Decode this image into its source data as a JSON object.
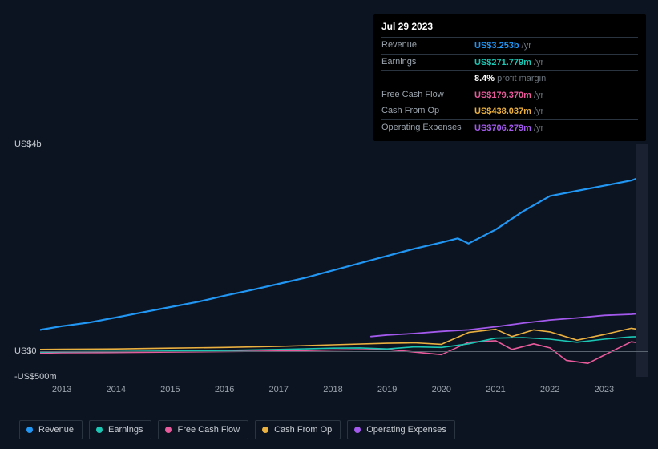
{
  "tooltip": {
    "date": "Jul 29 2023",
    "rows": [
      {
        "label": "Revenue",
        "value": "US$3.253b",
        "unit": "/yr",
        "color": "#2196f3"
      },
      {
        "label": "Earnings",
        "value": "US$271.779m",
        "unit": "/yr",
        "color": "#1bc6b4"
      },
      {
        "label": "",
        "value": "8.4%",
        "unit": "profit margin",
        "color": "#ffffff"
      },
      {
        "label": "Free Cash Flow",
        "value": "US$179.370m",
        "unit": "/yr",
        "color": "#e75a9b"
      },
      {
        "label": "Cash From Op",
        "value": "US$438.037m",
        "unit": "/yr",
        "color": "#eab040"
      },
      {
        "label": "Operating Expenses",
        "value": "US$706.279m",
        "unit": "/yr",
        "color": "#a259ec"
      }
    ]
  },
  "chart": {
    "type": "line",
    "background_color": "#0d1421",
    "grid_color": "#2a3340",
    "zero_line_color": "#5a6370",
    "future_shade_color": "#1a2232",
    "y_axis": {
      "min": -500,
      "max": 4000,
      "ticks": [
        {
          "v": 4000,
          "label": "US$4b"
        },
        {
          "v": 0,
          "label": "US$0"
        },
        {
          "v": -500,
          "label": "-US$500m"
        }
      ]
    },
    "x_axis": {
      "min": 2012.6,
      "max": 2023.8,
      "ticks": [
        2013,
        2014,
        2015,
        2016,
        2017,
        2018,
        2019,
        2020,
        2021,
        2022,
        2023
      ],
      "cursor_x": 2023.58,
      "future_start": 2023.58
    },
    "series": [
      {
        "name": "Revenue",
        "color": "#2196f3",
        "width": 2.2,
        "points": [
          [
            2012.6,
            410
          ],
          [
            2013,
            480
          ],
          [
            2013.5,
            550
          ],
          [
            2014,
            650
          ],
          [
            2014.5,
            750
          ],
          [
            2015,
            850
          ],
          [
            2015.5,
            950
          ],
          [
            2016,
            1070
          ],
          [
            2016.5,
            1180
          ],
          [
            2017,
            1300
          ],
          [
            2017.5,
            1420
          ],
          [
            2018,
            1560
          ],
          [
            2018.5,
            1700
          ],
          [
            2019,
            1840
          ],
          [
            2019.5,
            1980
          ],
          [
            2020,
            2100
          ],
          [
            2020.3,
            2180
          ],
          [
            2020.5,
            2080
          ],
          [
            2021,
            2350
          ],
          [
            2021.5,
            2700
          ],
          [
            2022,
            3000
          ],
          [
            2022.5,
            3100
          ],
          [
            2023,
            3200
          ],
          [
            2023.5,
            3300
          ],
          [
            2023.8,
            3420
          ]
        ]
      },
      {
        "name": "Operating Expenses",
        "color": "#a259ec",
        "width": 1.8,
        "points": [
          [
            2018.7,
            280
          ],
          [
            2019,
            310
          ],
          [
            2019.5,
            340
          ],
          [
            2020,
            380
          ],
          [
            2020.5,
            410
          ],
          [
            2021,
            470
          ],
          [
            2021.5,
            540
          ],
          [
            2022,
            600
          ],
          [
            2022.5,
            640
          ],
          [
            2023,
            690
          ],
          [
            2023.5,
            710
          ],
          [
            2023.8,
            740
          ]
        ]
      },
      {
        "name": "Cash From Op",
        "color": "#eab040",
        "width": 1.6,
        "points": [
          [
            2012.6,
            30
          ],
          [
            2013,
            35
          ],
          [
            2014,
            40
          ],
          [
            2015,
            55
          ],
          [
            2016,
            70
          ],
          [
            2017,
            90
          ],
          [
            2018,
            120
          ],
          [
            2019,
            150
          ],
          [
            2019.5,
            160
          ],
          [
            2020,
            130
          ],
          [
            2020.5,
            360
          ],
          [
            2021,
            420
          ],
          [
            2021.3,
            280
          ],
          [
            2021.7,
            410
          ],
          [
            2022,
            370
          ],
          [
            2022.5,
            210
          ],
          [
            2023,
            320
          ],
          [
            2023.5,
            440
          ],
          [
            2023.8,
            390
          ]
        ]
      },
      {
        "name": "Earnings",
        "color": "#1bc6b4",
        "width": 1.6,
        "points": [
          [
            2012.6,
            -20
          ],
          [
            2013,
            -15
          ],
          [
            2014,
            -10
          ],
          [
            2015,
            0
          ],
          [
            2016,
            10
          ],
          [
            2017,
            30
          ],
          [
            2018,
            55
          ],
          [
            2018.5,
            60
          ],
          [
            2019,
            40
          ],
          [
            2019.5,
            80
          ],
          [
            2020,
            70
          ],
          [
            2020.5,
            140
          ],
          [
            2021,
            250
          ],
          [
            2021.5,
            260
          ],
          [
            2022,
            230
          ],
          [
            2022.5,
            170
          ],
          [
            2023,
            230
          ],
          [
            2023.5,
            275
          ],
          [
            2023.8,
            280
          ]
        ]
      },
      {
        "name": "Free Cash Flow",
        "color": "#e75a9b",
        "width": 1.6,
        "points": [
          [
            2012.6,
            -40
          ],
          [
            2013,
            -35
          ],
          [
            2014,
            -30
          ],
          [
            2015,
            -20
          ],
          [
            2016,
            -10
          ],
          [
            2017,
            0
          ],
          [
            2018,
            20
          ],
          [
            2019,
            30
          ],
          [
            2019.5,
            -20
          ],
          [
            2020,
            -70
          ],
          [
            2020.5,
            170
          ],
          [
            2021,
            200
          ],
          [
            2021.3,
            30
          ],
          [
            2021.7,
            140
          ],
          [
            2022,
            60
          ],
          [
            2022.3,
            -180
          ],
          [
            2022.7,
            -240
          ],
          [
            2023,
            -80
          ],
          [
            2023.5,
            180
          ],
          [
            2023.8,
            130
          ]
        ]
      }
    ]
  },
  "legend": [
    {
      "label": "Revenue",
      "color": "#2196f3"
    },
    {
      "label": "Earnings",
      "color": "#1bc6b4"
    },
    {
      "label": "Free Cash Flow",
      "color": "#e75a9b"
    },
    {
      "label": "Cash From Op",
      "color": "#eab040"
    },
    {
      "label": "Operating Expenses",
      "color": "#a259ec"
    }
  ]
}
